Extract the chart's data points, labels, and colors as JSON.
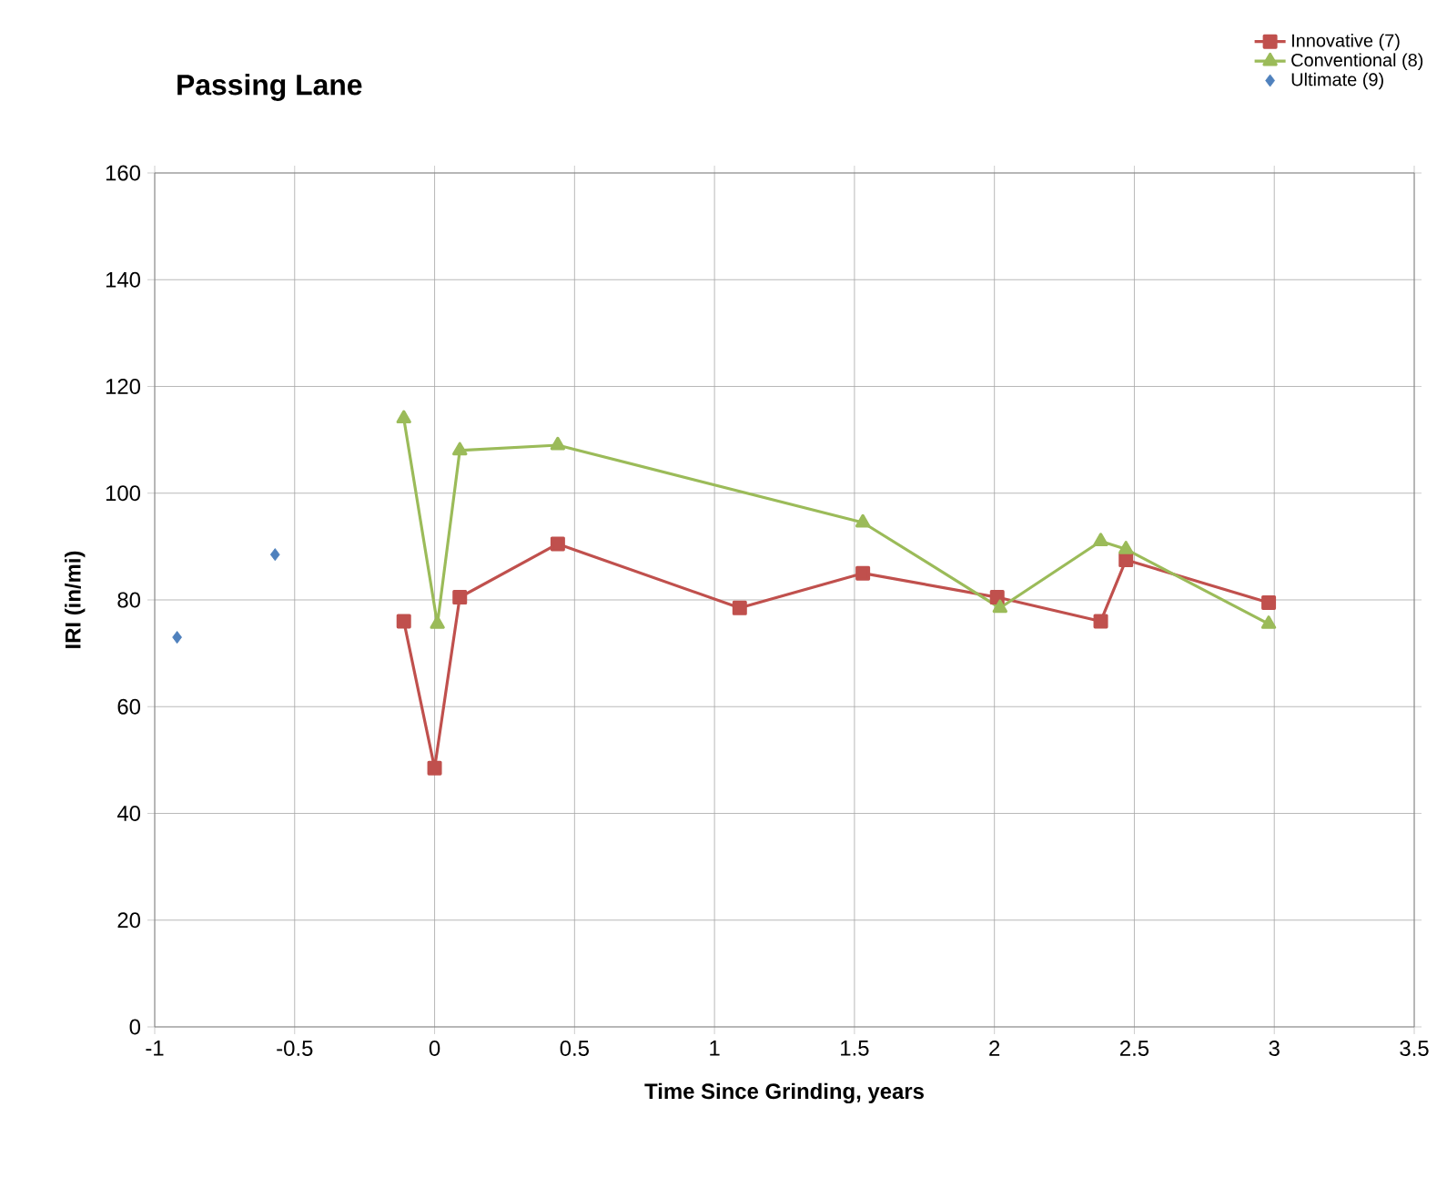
{
  "chart_data": {
    "type": "line",
    "title": "Passing Lane",
    "xlabel": "Time Since Grinding, years",
    "ylabel": "IRI (in/mi)",
    "xlim": [
      -1,
      3.5
    ],
    "xticks": [
      -1,
      -0.5,
      0,
      0.5,
      1,
      1.5,
      2,
      2.5,
      3,
      3.5
    ],
    "ylim": [
      0,
      160
    ],
    "yticks": [
      0,
      20,
      40,
      60,
      80,
      100,
      120,
      140,
      160
    ],
    "grid": true,
    "legend": "top right",
    "series": [
      {
        "name": "Innovative (7)",
        "marker": "square",
        "color": "#c0504d",
        "x": [
          -0.11,
          0,
          0.09,
          0.44,
          1.09,
          1.53,
          2.01,
          2.38,
          2.47,
          2.98
        ],
        "values": [
          76,
          48.5,
          80.5,
          90.5,
          78.5,
          85,
          80.5,
          76,
          87.5,
          79.5
        ]
      },
      {
        "name": "Conventional (8)",
        "marker": "triangle",
        "color": "#9bbb59",
        "x": [
          -0.11,
          0.01,
          0.09,
          0.44,
          1.53,
          2.02,
          2.38,
          2.47,
          2.98
        ],
        "values": [
          114,
          75.5,
          108,
          109,
          94.5,
          78.5,
          91,
          89.5,
          75.5
        ]
      },
      {
        "name": "Ultimate (9)",
        "type": "scatter",
        "marker": "diamond",
        "color": "#4f81bd",
        "x": [
          -0.92,
          -0.57
        ],
        "values": [
          73,
          88.5
        ]
      }
    ]
  }
}
